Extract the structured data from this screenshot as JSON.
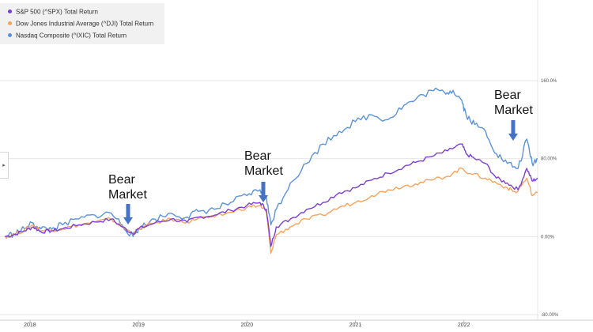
{
  "legend": {
    "items": [
      {
        "label": "S&P 500 (^SPX) Total Return",
        "color": "#7b3fd6"
      },
      {
        "label": "Dow Jones Industrial Average (^DJI) Total Return",
        "color": "#f7a35c"
      },
      {
        "label": "Nasdaq Composite (^IXIC) Total Return",
        "color": "#5b93db"
      }
    ]
  },
  "expand_glyph": "▸",
  "annotations": [
    {
      "line1": "Bear",
      "line2": "Market",
      "arrow_color": "#4472c4"
    },
    {
      "line1": "Bear",
      "line2": "Market",
      "arrow_color": "#4472c4"
    },
    {
      "line1": "Bear",
      "line2": "Market",
      "arrow_color": "#4472c4"
    }
  ],
  "chart_data": {
    "type": "line",
    "x_ticks": [
      "2018",
      "2019",
      "2020",
      "2021",
      "2022"
    ],
    "y_ticks": [
      "160.0%",
      "80.00%",
      "0.00%",
      "-80.00%"
    ],
    "y_tick_values": [
      160,
      80,
      0,
      -80
    ],
    "ylim": [
      -80,
      160
    ],
    "xlim": [
      2017.76,
      2022.68
    ],
    "grid": true,
    "legend_position": "top-left",
    "series": [
      {
        "name": "S&P 500 (^SPX) Total Return",
        "color": "#7b3fd6",
        "points": [
          [
            2017.77,
            0
          ],
          [
            2017.85,
            2
          ],
          [
            2017.95,
            6
          ],
          [
            2018.03,
            10
          ],
          [
            2018.1,
            5
          ],
          [
            2018.2,
            6
          ],
          [
            2018.3,
            8
          ],
          [
            2018.45,
            12
          ],
          [
            2018.6,
            15
          ],
          [
            2018.75,
            18
          ],
          [
            2018.85,
            10
          ],
          [
            2018.95,
            3
          ],
          [
            2019.0,
            8
          ],
          [
            2019.15,
            14
          ],
          [
            2019.3,
            18
          ],
          [
            2019.45,
            15
          ],
          [
            2019.55,
            20
          ],
          [
            2019.7,
            22
          ],
          [
            2019.85,
            27
          ],
          [
            2020.0,
            32
          ],
          [
            2020.12,
            35
          ],
          [
            2020.18,
            28
          ],
          [
            2020.22,
            -10
          ],
          [
            2020.27,
            10
          ],
          [
            2020.4,
            18
          ],
          [
            2020.55,
            28
          ],
          [
            2020.7,
            35
          ],
          [
            2020.85,
            45
          ],
          [
            2021.0,
            50
          ],
          [
            2021.15,
            58
          ],
          [
            2021.3,
            65
          ],
          [
            2021.45,
            72
          ],
          [
            2021.55,
            76
          ],
          [
            2021.7,
            82
          ],
          [
            2021.85,
            88
          ],
          [
            2021.98,
            95
          ],
          [
            2022.02,
            85
          ],
          [
            2022.1,
            80
          ],
          [
            2022.2,
            75
          ],
          [
            2022.3,
            60
          ],
          [
            2022.4,
            55
          ],
          [
            2022.5,
            48
          ],
          [
            2022.58,
            70
          ],
          [
            2022.63,
            57
          ],
          [
            2022.68,
            60
          ]
        ]
      },
      {
        "name": "Dow Jones Industrial Average (^DJI) Total Return",
        "color": "#f7a35c",
        "points": [
          [
            2017.77,
            0
          ],
          [
            2017.85,
            2
          ],
          [
            2017.95,
            7
          ],
          [
            2018.03,
            12
          ],
          [
            2018.1,
            6
          ],
          [
            2018.2,
            7
          ],
          [
            2018.3,
            8
          ],
          [
            2018.45,
            12
          ],
          [
            2018.6,
            15
          ],
          [
            2018.75,
            18
          ],
          [
            2018.85,
            10
          ],
          [
            2018.95,
            3
          ],
          [
            2019.0,
            8
          ],
          [
            2019.15,
            14
          ],
          [
            2019.3,
            18
          ],
          [
            2019.45,
            15
          ],
          [
            2019.55,
            19
          ],
          [
            2019.7,
            20
          ],
          [
            2019.85,
            25
          ],
          [
            2020.0,
            30
          ],
          [
            2020.12,
            32
          ],
          [
            2020.18,
            25
          ],
          [
            2020.22,
            -17
          ],
          [
            2020.27,
            2
          ],
          [
            2020.4,
            10
          ],
          [
            2020.55,
            18
          ],
          [
            2020.7,
            22
          ],
          [
            2020.85,
            30
          ],
          [
            2021.0,
            35
          ],
          [
            2021.15,
            42
          ],
          [
            2021.3,
            48
          ],
          [
            2021.45,
            52
          ],
          [
            2021.55,
            54
          ],
          [
            2021.7,
            58
          ],
          [
            2021.85,
            62
          ],
          [
            2021.98,
            70
          ],
          [
            2022.05,
            65
          ],
          [
            2022.2,
            60
          ],
          [
            2022.3,
            55
          ],
          [
            2022.4,
            50
          ],
          [
            2022.48,
            45
          ],
          [
            2022.58,
            60
          ],
          [
            2022.63,
            42
          ],
          [
            2022.68,
            45
          ]
        ]
      },
      {
        "name": "Nasdaq Composite (^IXIC) Total Return",
        "color": "#5b93db",
        "points": [
          [
            2017.77,
            0
          ],
          [
            2017.85,
            3
          ],
          [
            2017.95,
            8
          ],
          [
            2018.03,
            14
          ],
          [
            2018.1,
            8
          ],
          [
            2018.2,
            8
          ],
          [
            2018.3,
            12
          ],
          [
            2018.45,
            18
          ],
          [
            2018.6,
            22
          ],
          [
            2018.75,
            24
          ],
          [
            2018.85,
            12
          ],
          [
            2018.95,
            0
          ],
          [
            2019.0,
            8
          ],
          [
            2019.15,
            18
          ],
          [
            2019.3,
            24
          ],
          [
            2019.45,
            20
          ],
          [
            2019.55,
            26
          ],
          [
            2019.7,
            28
          ],
          [
            2019.85,
            35
          ],
          [
            2020.0,
            42
          ],
          [
            2020.12,
            48
          ],
          [
            2020.18,
            40
          ],
          [
            2020.22,
            12
          ],
          [
            2020.27,
            28
          ],
          [
            2020.4,
            55
          ],
          [
            2020.55,
            75
          ],
          [
            2020.7,
            95
          ],
          [
            2020.85,
            108
          ],
          [
            2021.0,
            118
          ],
          [
            2021.15,
            125
          ],
          [
            2021.3,
            120
          ],
          [
            2021.45,
            135
          ],
          [
            2021.55,
            140
          ],
          [
            2021.7,
            150
          ],
          [
            2021.82,
            148
          ],
          [
            2021.9,
            150
          ],
          [
            2021.98,
            140
          ],
          [
            2022.02,
            125
          ],
          [
            2022.1,
            115
          ],
          [
            2022.2,
            108
          ],
          [
            2022.3,
            85
          ],
          [
            2022.4,
            75
          ],
          [
            2022.5,
            70
          ],
          [
            2022.58,
            100
          ],
          [
            2022.63,
            75
          ],
          [
            2022.68,
            80
          ]
        ]
      }
    ]
  }
}
